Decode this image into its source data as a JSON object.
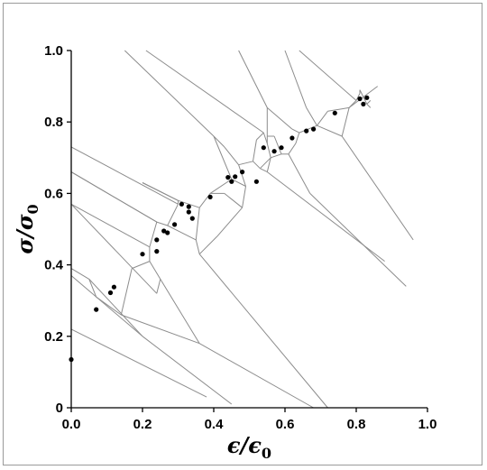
{
  "chart_data": {
    "type": "scatter",
    "title": "",
    "xlabel": "ϵ/ϵ0",
    "ylabel": "σ/σ0",
    "xlim": [
      0.0,
      1.0
    ],
    "ylim": [
      0.0,
      1.0
    ],
    "xticks": [
      "0.0",
      "0.2",
      "0.4",
      "0.6",
      "0.8",
      "1.0"
    ],
    "yticks": [
      "0",
      "0.2",
      "0.4",
      "0.6",
      "0.8",
      "1.0"
    ],
    "grid": false,
    "legend": "none",
    "series": [
      {
        "marker": "dot",
        "color": "#000000",
        "points": [
          [
            0.0,
            0.135
          ],
          [
            0.07,
            0.275
          ],
          [
            0.11,
            0.322
          ],
          [
            0.12,
            0.338
          ],
          [
            0.2,
            0.43
          ],
          [
            0.24,
            0.438
          ],
          [
            0.24,
            0.47
          ],
          [
            0.26,
            0.495
          ],
          [
            0.27,
            0.49
          ],
          [
            0.29,
            0.513
          ],
          [
            0.31,
            0.57
          ],
          [
            0.33,
            0.563
          ],
          [
            0.33,
            0.548
          ],
          [
            0.34,
            0.53
          ],
          [
            0.39,
            0.59
          ],
          [
            0.44,
            0.645
          ],
          [
            0.45,
            0.633
          ],
          [
            0.46,
            0.647
          ],
          [
            0.48,
            0.66
          ],
          [
            0.52,
            0.633
          ],
          [
            0.54,
            0.728
          ],
          [
            0.57,
            0.718
          ],
          [
            0.59,
            0.728
          ],
          [
            0.62,
            0.755
          ],
          [
            0.66,
            0.775
          ],
          [
            0.68,
            0.78
          ],
          [
            0.74,
            0.825
          ],
          [
            0.81,
            0.865
          ],
          [
            0.82,
            0.85
          ],
          [
            0.83,
            0.868
          ]
        ]
      }
    ],
    "voronoi_color": "#8c8c8c"
  }
}
